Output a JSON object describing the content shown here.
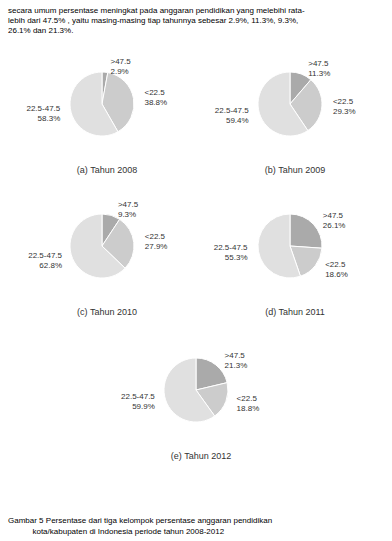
{
  "chart_data": [
    {
      "type": "pie",
      "title": "(a) Tahun 2008",
      "categories": [
        ">47.5",
        "<22.5",
        "22.5-47.5"
      ],
      "values": [
        2.9,
        38.8,
        58.3
      ],
      "value_labels": [
        ">47.5\n2.9%",
        "<22.5\n38.8%",
        "22.5-47.5\n58.3%"
      ],
      "colors": [
        "#aaaaaa",
        "#cccccc",
        "#e0e0e0"
      ]
    },
    {
      "type": "pie",
      "title": "(b) Tahun 2009",
      "categories": [
        ">47.5",
        "<22.5",
        "22.5-47.5"
      ],
      "values": [
        11.3,
        29.3,
        59.4
      ],
      "value_labels": [
        ">47.5\n11.3%",
        "<22.5\n29.3%",
        "22.5-47.5\n59.4%"
      ],
      "colors": [
        "#aaaaaa",
        "#cccccc",
        "#e0e0e0"
      ]
    },
    {
      "type": "pie",
      "title": "(c) Tahun 2010",
      "categories": [
        ">47.5",
        "<22.5",
        "22.5-47.5"
      ],
      "values": [
        9.3,
        27.9,
        62.8
      ],
      "value_labels": [
        ">47.5\n9.3%",
        "<22.5\n27.9%",
        "22.5-47.5\n62.8%"
      ],
      "colors": [
        "#aaaaaa",
        "#cccccc",
        "#e0e0e0"
      ]
    },
    {
      "type": "pie",
      "title": "(d) Tahun 2011",
      "categories": [
        ">47.5",
        "<22.5",
        "22.5-47.5"
      ],
      "values": [
        26.1,
        18.6,
        55.3
      ],
      "value_labels": [
        ">47.5\n26.1%",
        "<22.5\n18.6%",
        "22.5-47.5\n55.3%"
      ],
      "colors": [
        "#aaaaaa",
        "#cccccc",
        "#e0e0e0"
      ]
    },
    {
      "type": "pie",
      "title": "(e) Tahun 2012",
      "categories": [
        ">47.5",
        "<22.5",
        "22.5-47.5"
      ],
      "values": [
        21.3,
        18.8,
        59.9
      ],
      "value_labels": [
        ">47.5\n21.3%",
        "<22.5\n18.8%",
        "22.5-47.5\n59.9%"
      ],
      "colors": [
        "#aaaaaa",
        "#cccccc",
        "#e0e0e0"
      ]
    }
  ],
  "annotations": [
    "secara umum persentase meningkat pada anggaran pendidikan yang melebihi rata-",
    "lebih dari 47.5% , yaitu masing-masing tiap tahunnya sebesar 2.9%, 11.3%, 9.3%,",
    "26.1% dan 21.3%."
  ],
  "caption": [
    "Gambar 5 Persentase dari tiga kelompok persentase anggaran pendidikan",
    "           kota/kabupaten di Indonesia periode tahun 2008-2012"
  ]
}
